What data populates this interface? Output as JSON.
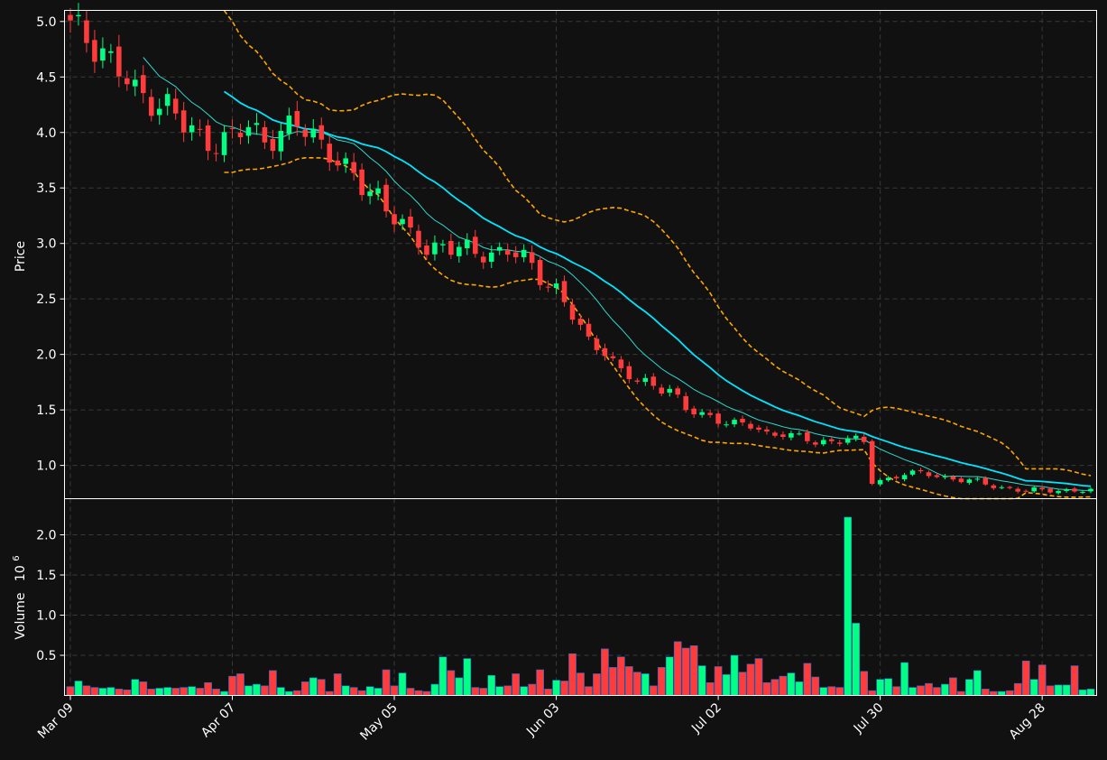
{
  "chart_data": {
    "type": "candlestick",
    "background": "#111111",
    "colors": {
      "up": "#00ff83",
      "down": "#ff3b3b",
      "ma_fast": "#2fd8cf",
      "ma_slow": "#00e5ff",
      "bands": "#ffa500",
      "axis": "#ffffff",
      "grid": "#3a3a3a"
    },
    "grid": true,
    "x": {
      "tick_labels": [
        "Mar 09",
        "Apr 07",
        "May 05",
        "Jun 03",
        "Jul 02",
        "Jul 30",
        "Aug 28"
      ],
      "tick_index": [
        0,
        20,
        40,
        60,
        80,
        100,
        120
      ],
      "n_bars": 127
    },
    "price_panel": {
      "ylabel": "Price",
      "ylim": [
        0.7,
        5.1
      ],
      "yticks": [
        1.0,
        1.5,
        2.0,
        2.5,
        3.0,
        3.5,
        4.0,
        4.5,
        5.0
      ],
      "ytick_labels": [
        "1.0",
        "1.5",
        "2.0",
        "2.5",
        "3.0",
        "3.5",
        "4.0",
        "4.5",
        "5.0"
      ]
    },
    "volume_panel": {
      "ylabel": "Volume",
      "ylabel_exponent": "10",
      "ylabel_power": "6",
      "ylim": [
        0,
        2.45
      ],
      "yticks": [
        0.5,
        1.0,
        1.5,
        2.0
      ],
      "ytick_labels": [
        "0.5",
        "1.0",
        "1.5",
        "2.0"
      ]
    },
    "close_keypoints": [
      [
        0,
        4.95
      ],
      [
        4,
        4.75
      ],
      [
        6,
        4.55
      ],
      [
        8,
        4.35
      ],
      [
        10,
        4.3
      ],
      [
        12,
        4.25
      ],
      [
        14,
        4.05
      ],
      [
        16,
        3.95
      ],
      [
        18,
        3.92
      ],
      [
        20,
        3.95
      ],
      [
        22,
        4.05
      ],
      [
        24,
        3.95
      ],
      [
        26,
        4.0
      ],
      [
        28,
        4.05
      ],
      [
        30,
        3.98
      ],
      [
        32,
        3.85
      ],
      [
        34,
        3.65
      ],
      [
        36,
        3.5
      ],
      [
        38,
        3.45
      ],
      [
        40,
        3.25
      ],
      [
        42,
        3.05
      ],
      [
        44,
        2.95
      ],
      [
        46,
        3.0
      ],
      [
        48,
        2.95
      ],
      [
        50,
        2.9
      ],
      [
        52,
        2.92
      ],
      [
        54,
        2.95
      ],
      [
        56,
        2.85
      ],
      [
        58,
        2.7
      ],
      [
        60,
        2.6
      ],
      [
        62,
        2.35
      ],
      [
        64,
        2.1
      ],
      [
        66,
        2.05
      ],
      [
        68,
        1.85
      ],
      [
        70,
        1.75
      ],
      [
        72,
        1.72
      ],
      [
        74,
        1.7
      ],
      [
        76,
        1.5
      ],
      [
        78,
        1.45
      ],
      [
        80,
        1.42
      ],
      [
        82,
        1.38
      ],
      [
        84,
        1.35
      ],
      [
        86,
        1.28
      ],
      [
        88,
        1.3
      ],
      [
        90,
        1.25
      ],
      [
        92,
        1.2
      ],
      [
        94,
        1.22
      ],
      [
        96,
        1.25
      ],
      [
        98,
        1.2
      ],
      [
        99,
        0.85
      ],
      [
        101,
        0.88
      ],
      [
        103,
        0.93
      ],
      [
        106,
        0.92
      ],
      [
        109,
        0.88
      ],
      [
        112,
        0.85
      ],
      [
        115,
        0.8
      ],
      [
        118,
        0.77
      ],
      [
        121,
        0.78
      ],
      [
        124,
        0.77
      ],
      [
        126,
        0.77
      ]
    ],
    "volume_millions": [
      0.11,
      0.18,
      0.12,
      0.1,
      0.09,
      0.1,
      0.08,
      0.07,
      0.2,
      0.17,
      0.08,
      0.09,
      0.1,
      0.09,
      0.1,
      0.11,
      0.09,
      0.16,
      0.08,
      0.05,
      0.24,
      0.27,
      0.12,
      0.14,
      0.12,
      0.31,
      0.1,
      0.05,
      0.06,
      0.17,
      0.22,
      0.2,
      0.05,
      0.27,
      0.12,
      0.1,
      0.06,
      0.11,
      0.09,
      0.32,
      0.12,
      0.28,
      0.09,
      0.06,
      0.05,
      0.14,
      0.48,
      0.31,
      0.22,
      0.46,
      0.1,
      0.09,
      0.25,
      0.11,
      0.12,
      0.27,
      0.11,
      0.14,
      0.32,
      0.08,
      0.19,
      0.18,
      0.52,
      0.28,
      0.11,
      0.27,
      0.58,
      0.35,
      0.48,
      0.36,
      0.29,
      0.27,
      0.12,
      0.35,
      0.48,
      0.67,
      0.59,
      0.62,
      0.37,
      0.16,
      0.36,
      0.26,
      0.5,
      0.29,
      0.39,
      0.46,
      0.16,
      0.2,
      0.24,
      0.28,
      0.17,
      0.4,
      0.23,
      0.1,
      0.11,
      0.1,
      2.22,
      0.9,
      0.3,
      0.06,
      0.2,
      0.21,
      0.11,
      0.41,
      0.1,
      0.12,
      0.15,
      0.1,
      0.14,
      0.22,
      0.05,
      0.2,
      0.31,
      0.08,
      0.05,
      0.05,
      0.06,
      0.15,
      0.43,
      0.2,
      0.38,
      0.12,
      0.13,
      0.13,
      0.37,
      0.07,
      0.08
    ]
  }
}
